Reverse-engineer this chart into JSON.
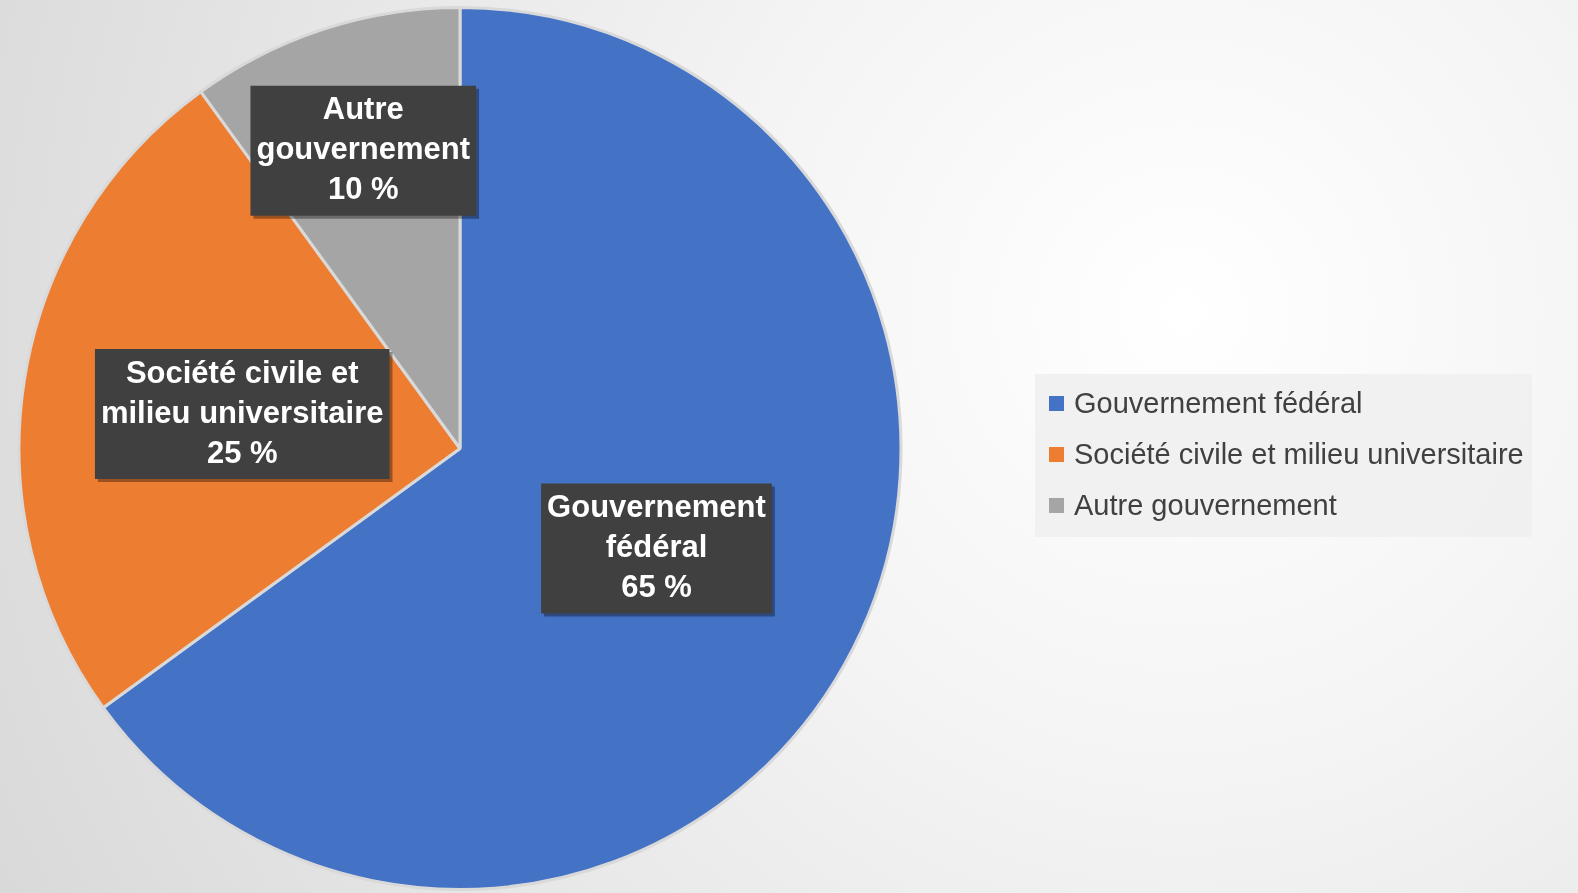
{
  "chart_data": {
    "type": "pie",
    "categories": [
      "Gouvernement fédéral",
      "Société civile et milieu universitaire",
      "Autre gouvernement"
    ],
    "values": [
      65,
      25,
      10
    ],
    "colors": [
      "#4472c4",
      "#ed7d31",
      "#a5a5a5"
    ],
    "value_labels": [
      "65 %",
      "25 %",
      "10 %"
    ],
    "legend": "right"
  }
}
